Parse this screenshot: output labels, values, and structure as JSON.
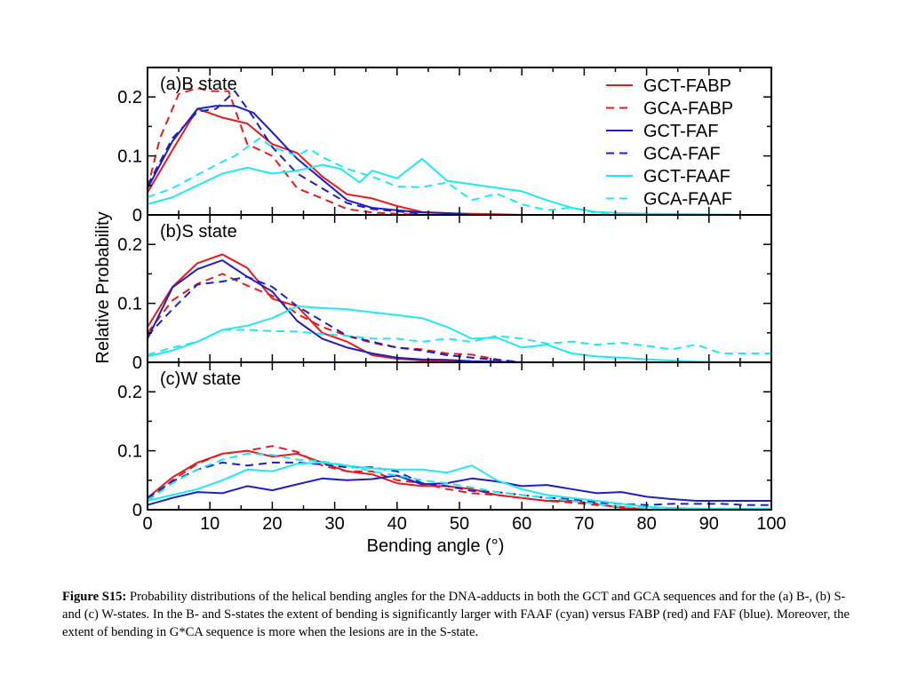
{
  "caption": {
    "label": "Figure S15:",
    "text": "Probability distributions of the helical bending angles for the DNA-adducts in both the GCT and GCA sequences and for the (a) B-, (b) S- and (c) W-states. In the B- and S-states the extent of bending is significantly larger with FAAF (cyan) versus FABP (red) and FAF (blue). Moreover, the extent of bending in G*CA  sequence is more when the lesions are in the S-state."
  },
  "chart_data": {
    "type": "line",
    "xlabel": "Bending angle (°)",
    "ylabel": "Relative Probability",
    "xlim": [
      0,
      100
    ],
    "ylim": [
      0,
      0.25
    ],
    "xticks": [
      "0",
      "10",
      "20",
      "30",
      "40",
      "50",
      "60",
      "70",
      "80",
      "90",
      "100"
    ],
    "yticks": [
      "0",
      "0.1",
      "0.2"
    ],
    "legend": {
      "placement": "top-right",
      "entries": [
        {
          "name": "GCT-FABP",
          "color": "#e41a1c",
          "dash": "solid"
        },
        {
          "name": "GCA-FABP",
          "color": "#e41a1c",
          "dash": "dashed"
        },
        {
          "name": "GCT-FAF",
          "color": "#1f1fbf",
          "dash": "solid"
        },
        {
          "name": "GCA-FAF",
          "color": "#1f1fbf",
          "dash": "dashed"
        },
        {
          "name": "GCT-FAAF",
          "color": "#1fe8f0",
          "dash": "solid"
        },
        {
          "name": "GCA-FAAF",
          "color": "#1fe8f0",
          "dash": "dashed"
        }
      ]
    },
    "panels": [
      {
        "label": "(a)B state",
        "series": [
          {
            "name": "GCT-FABP",
            "color": "#e41a1c",
            "dash": "solid",
            "x": [
              0,
              4,
              8,
              12,
              16,
              20,
              24,
              28,
              32,
              36,
              40,
              44,
              48,
              52,
              56,
              60
            ],
            "y": [
              0.038,
              0.11,
              0.18,
              0.165,
              0.155,
              0.12,
              0.105,
              0.065,
              0.035,
              0.028,
              0.015,
              0.005,
              0.003,
              0.002,
              0.001,
              0
            ]
          },
          {
            "name": "GCA-FABP",
            "color": "#e41a1c",
            "dash": "dashed",
            "x": [
              0,
              2,
              5,
              8,
              10,
              13,
              16,
              20,
              24,
              28,
              32,
              36,
              40,
              44
            ],
            "y": [
              0.045,
              0.13,
              0.205,
              0.215,
              0.21,
              0.21,
              0.12,
              0.1,
              0.045,
              0.028,
              0.01,
              0.004,
              0.002,
              0
            ]
          },
          {
            "name": "GCT-FAF",
            "color": "#1f1fbf",
            "dash": "solid",
            "x": [
              0,
              4,
              8,
              11,
              14,
              17,
              20,
              24,
              28,
              32,
              36,
              40,
              44,
              48,
              52
            ],
            "y": [
              0.045,
              0.125,
              0.18,
              0.185,
              0.185,
              0.173,
              0.14,
              0.095,
              0.06,
              0.025,
              0.012,
              0.008,
              0.004,
              0.003,
              0
            ]
          },
          {
            "name": "GCA-FAF",
            "color": "#1f1fbf",
            "dash": "dashed",
            "x": [
              0,
              4,
              8,
              11,
              14,
              17,
              20,
              24,
              28,
              32,
              36,
              40,
              44
            ],
            "y": [
              0.05,
              0.13,
              0.175,
              0.18,
              0.21,
              0.165,
              0.115,
              0.07,
              0.045,
              0.02,
              0.01,
              0.006,
              0.002
            ]
          },
          {
            "name": "GCT-FAAF",
            "color": "#1fe8f0",
            "dash": "solid",
            "x": [
              0,
              4,
              8,
              12,
              16,
              20,
              24,
              28,
              31,
              34,
              36,
              40,
              44,
              48,
              52,
              56,
              60,
              64,
              68,
              72,
              76,
              80,
              88,
              96,
              100
            ],
            "y": [
              0.018,
              0.03,
              0.05,
              0.07,
              0.08,
              0.07,
              0.075,
              0.085,
              0.078,
              0.055,
              0.075,
              0.062,
              0.095,
              0.058,
              0.052,
              0.046,
              0.04,
              0.025,
              0.012,
              0.005,
              0.003,
              0.002,
              0.001,
              0,
              0
            ]
          },
          {
            "name": "GCA-FAAF",
            "color": "#1fe8f0",
            "dash": "dashed",
            "x": [
              0,
              4,
              8,
              12,
              14,
              18,
              20,
              24,
              26,
              28,
              32,
              36,
              40,
              44,
              48,
              52,
              56,
              60,
              64,
              68,
              72,
              80,
              90,
              100
            ],
            "y": [
              0.03,
              0.045,
              0.068,
              0.09,
              0.1,
              0.13,
              0.115,
              0.1,
              0.112,
              0.098,
              0.078,
              0.065,
              0.048,
              0.047,
              0.055,
              0.025,
              0.036,
              0.018,
              0.008,
              0.012,
              0.003,
              0.002,
              0,
              0
            ]
          }
        ]
      },
      {
        "label": "(b)S state",
        "series": [
          {
            "name": "GCT-FABP",
            "color": "#e41a1c",
            "dash": "solid",
            "x": [
              0,
              4,
              8,
              12,
              16,
              20,
              24,
              28,
              32,
              36,
              40,
              44,
              48,
              52,
              56,
              60
            ],
            "y": [
              0.06,
              0.128,
              0.168,
              0.183,
              0.16,
              0.108,
              0.095,
              0.05,
              0.035,
              0.012,
              0.006,
              0.003,
              0.002,
              0.001,
              0.001,
              0
            ]
          },
          {
            "name": "GCA-FABP",
            "color": "#e41a1c",
            "dash": "dashed",
            "x": [
              0,
              4,
              8,
              12,
              16,
              20,
              24,
              28,
              32,
              36,
              40,
              44,
              48,
              52,
              56,
              60
            ],
            "y": [
              0.05,
              0.105,
              0.133,
              0.15,
              0.13,
              0.113,
              0.082,
              0.06,
              0.045,
              0.033,
              0.025,
              0.022,
              0.015,
              0.013,
              0.005,
              0
            ]
          },
          {
            "name": "GCT-FAF",
            "color": "#1f1fbf",
            "dash": "solid",
            "x": [
              0,
              4,
              8,
              12,
              16,
              20,
              24,
              28,
              32,
              36,
              40,
              44,
              48,
              52,
              56,
              60
            ],
            "y": [
              0.04,
              0.127,
              0.158,
              0.173,
              0.145,
              0.12,
              0.07,
              0.04,
              0.025,
              0.015,
              0.008,
              0.005,
              0.004,
              0.002,
              0.001,
              0
            ]
          },
          {
            "name": "GCA-FAF",
            "color": "#1f1fbf",
            "dash": "dashed",
            "x": [
              0,
              4,
              8,
              12,
              16,
              20,
              24,
              28,
              32,
              36,
              40,
              44,
              48,
              52,
              56,
              60
            ],
            "y": [
              0.045,
              0.09,
              0.132,
              0.137,
              0.145,
              0.128,
              0.095,
              0.07,
              0.045,
              0.035,
              0.025,
              0.02,
              0.012,
              0.008,
              0.004,
              0
            ]
          },
          {
            "name": "GCT-FAAF",
            "color": "#1fe8f0",
            "dash": "solid",
            "x": [
              0,
              4,
              8,
              12,
              16,
              20,
              24,
              28,
              32,
              36,
              40,
              44,
              48,
              52,
              56,
              60,
              64,
              68,
              72,
              76,
              80,
              84,
              88,
              92,
              96,
              100
            ],
            "y": [
              0.01,
              0.02,
              0.035,
              0.055,
              0.062,
              0.075,
              0.095,
              0.092,
              0.09,
              0.085,
              0.08,
              0.075,
              0.06,
              0.04,
              0.042,
              0.025,
              0.03,
              0.015,
              0.01,
              0.008,
              0.005,
              0.003,
              0.001,
              0,
              0,
              0
            ]
          },
          {
            "name": "GCA-FAAF",
            "color": "#1fe8f0",
            "dash": "dashed",
            "x": [
              0,
              4,
              8,
              12,
              16,
              20,
              24,
              28,
              32,
              36,
              40,
              44,
              48,
              52,
              56,
              60,
              64,
              68,
              72,
              76,
              80,
              84,
              88,
              92,
              96,
              100
            ],
            "y": [
              0.013,
              0.025,
              0.035,
              0.055,
              0.055,
              0.053,
              0.052,
              0.048,
              0.045,
              0.04,
              0.04,
              0.035,
              0.04,
              0.035,
              0.045,
              0.04,
              0.032,
              0.035,
              0.03,
              0.033,
              0.028,
              0.022,
              0.03,
              0.015,
              0.015,
              0.015
            ]
          }
        ]
      },
      {
        "label": "(c)W state",
        "series": [
          {
            "name": "GCT-FABP",
            "color": "#e41a1c",
            "dash": "solid",
            "x": [
              0,
              4,
              8,
              12,
              16,
              20,
              24,
              28,
              32,
              36,
              40,
              44,
              48,
              52,
              56,
              60,
              64,
              68,
              72,
              76,
              80
            ],
            "y": [
              0.02,
              0.055,
              0.08,
              0.095,
              0.1,
              0.09,
              0.095,
              0.08,
              0.065,
              0.06,
              0.045,
              0.04,
              0.04,
              0.035,
              0.025,
              0.02,
              0.015,
              0.015,
              0.01,
              0.003,
              0
            ]
          },
          {
            "name": "GCA-FABP",
            "color": "#e41a1c",
            "dash": "dashed",
            "x": [
              0,
              4,
              8,
              12,
              16,
              20,
              24,
              28,
              32,
              36,
              40,
              44,
              48,
              52,
              56,
              60,
              64,
              68,
              72,
              76,
              80
            ],
            "y": [
              0.015,
              0.05,
              0.078,
              0.095,
              0.1,
              0.108,
              0.098,
              0.075,
              0.065,
              0.065,
              0.05,
              0.045,
              0.035,
              0.028,
              0.025,
              0.02,
              0.015,
              0.012,
              0.008,
              0.005,
              0
            ]
          },
          {
            "name": "GCT-FAF",
            "color": "#1f1fbf",
            "dash": "solid",
            "x": [
              0,
              4,
              8,
              12,
              16,
              20,
              24,
              28,
              32,
              36,
              40,
              44,
              48,
              52,
              56,
              60,
              64,
              68,
              72,
              76,
              80,
              84,
              88,
              92,
              96,
              100
            ],
            "y": [
              0.008,
              0.02,
              0.03,
              0.028,
              0.04,
              0.033,
              0.043,
              0.053,
              0.05,
              0.052,
              0.058,
              0.043,
              0.045,
              0.053,
              0.048,
              0.04,
              0.042,
              0.035,
              0.028,
              0.03,
              0.022,
              0.018,
              0.015,
              0.015,
              0.015,
              0.015
            ]
          },
          {
            "name": "GCA-FAF",
            "color": "#1f1fbf",
            "dash": "dashed",
            "x": [
              0,
              4,
              8,
              12,
              16,
              20,
              24,
              28,
              32,
              36,
              40,
              44,
              48,
              52,
              56,
              60,
              64,
              68,
              72,
              76,
              80,
              84,
              88,
              92,
              96,
              100
            ],
            "y": [
              0.02,
              0.048,
              0.068,
              0.08,
              0.075,
              0.08,
              0.08,
              0.077,
              0.072,
              0.072,
              0.065,
              0.045,
              0.04,
              0.032,
              0.03,
              0.025,
              0.02,
              0.018,
              0.012,
              0.01,
              0.008,
              0.01,
              0.01,
              0.01,
              0.008,
              0.008
            ]
          },
          {
            "name": "GCT-FAAF",
            "color": "#1fe8f0",
            "dash": "solid",
            "x": [
              0,
              4,
              8,
              12,
              16,
              20,
              24,
              28,
              32,
              36,
              40,
              44,
              48,
              52,
              56,
              60,
              64,
              68,
              72,
              76,
              80,
              84,
              88,
              92,
              96,
              100
            ],
            "y": [
              0.015,
              0.025,
              0.035,
              0.05,
              0.068,
              0.065,
              0.078,
              0.08,
              0.075,
              0.07,
              0.068,
              0.068,
              0.063,
              0.075,
              0.05,
              0.035,
              0.025,
              0.02,
              0.015,
              0.01,
              0.005,
              0.003,
              0.002,
              0.002,
              0.002,
              0.002
            ]
          },
          {
            "name": "GCA-FAAF",
            "color": "#1fe8f0",
            "dash": "dashed",
            "x": [
              0,
              4,
              8,
              12,
              16,
              20,
              24,
              28,
              32,
              36,
              40,
              44,
              48,
              52,
              56,
              60,
              64,
              68,
              72,
              76,
              80,
              84,
              88,
              92,
              96,
              100
            ],
            "y": [
              0.015,
              0.045,
              0.068,
              0.085,
              0.095,
              0.093,
              0.085,
              0.082,
              0.075,
              0.065,
              0.058,
              0.05,
              0.045,
              0.038,
              0.03,
              0.025,
              0.02,
              0.015,
              0.01,
              0.005,
              0.003,
              0.002,
              0.002,
              0.002,
              0.002,
              0.002
            ]
          }
        ]
      }
    ]
  }
}
